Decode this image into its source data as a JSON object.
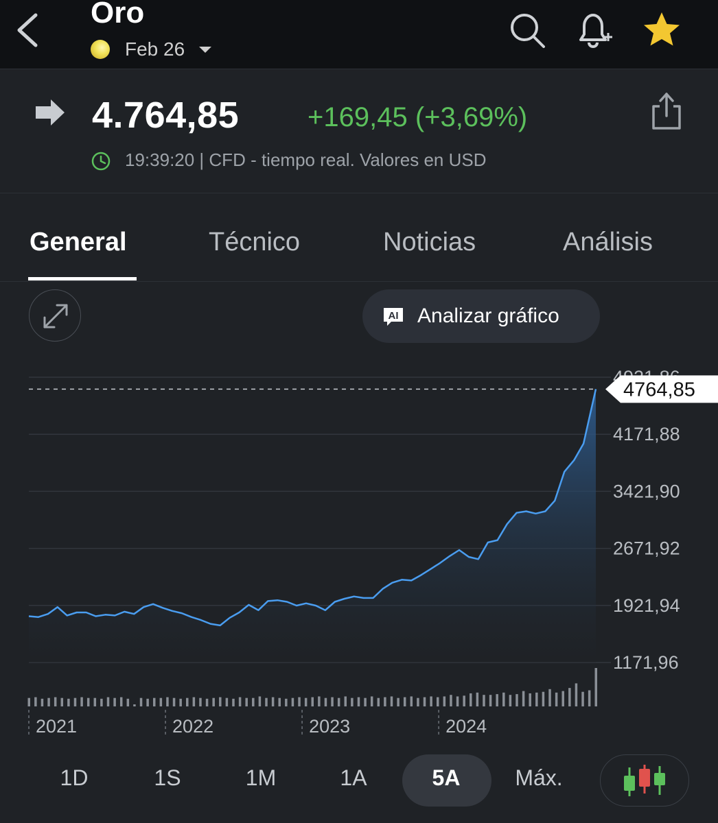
{
  "header": {
    "title": "Oro",
    "date": "Feb 26",
    "icons": [
      "back-chevron-icon",
      "search-icon",
      "bell-plus-icon",
      "star-icon"
    ],
    "star_color": "#f3c731"
  },
  "quote": {
    "price": "4.764,85",
    "change": "+169,45 (+3,69%)",
    "meta": "19:39:20 | CFD - tiempo real. Valores en USD",
    "change_color": "#5cc05c"
  },
  "tabs": [
    {
      "label": "General",
      "active": true
    },
    {
      "label": "Técnico"
    },
    {
      "label": "Noticias"
    },
    {
      "label": "Análisis"
    }
  ],
  "chart_controls": {
    "analyze_label": "Analizar gráfico",
    "ai_badge": "AI"
  },
  "ranges": [
    {
      "label": "1D"
    },
    {
      "label": "1S"
    },
    {
      "label": "1M"
    },
    {
      "label": "1A"
    },
    {
      "label": "5A",
      "active": true
    },
    {
      "label": "Máx."
    }
  ],
  "chart_data": {
    "type": "area",
    "y_ticks": [
      "4921,86",
      "4171,88",
      "3421,90",
      "2671,92",
      "1921,94",
      "1171,96"
    ],
    "y_tick_values": [
      4921.86,
      4171.88,
      3421.9,
      2671.92,
      1921.94,
      1171.96
    ],
    "ylim": [
      1171.96,
      4921.86
    ],
    "last_value_label": "4764,85",
    "last_value": 4764.85,
    "x_ticks": [
      "2021",
      "2022",
      "2023",
      "2024"
    ],
    "x_tick_values": [
      2021.0,
      2022.0,
      2023.0,
      2024.0
    ],
    "x_range": [
      2021.0,
      2025.15
    ],
    "series": [
      {
        "color": "#4a9df0",
        "x": [
          2021.0,
          2021.07,
          2021.14,
          2021.21,
          2021.28,
          2021.35,
          2021.42,
          2021.49,
          2021.56,
          2021.63,
          2021.7,
          2021.77,
          2021.84,
          2021.91,
          2021.98,
          2022.05,
          2022.12,
          2022.19,
          2022.26,
          2022.33,
          2022.4,
          2022.47,
          2022.54,
          2022.61,
          2022.68,
          2022.75,
          2022.82,
          2022.89,
          2022.96,
          2023.03,
          2023.1,
          2023.17,
          2023.24,
          2023.31,
          2023.38,
          2023.45,
          2023.52,
          2023.59,
          2023.66,
          2023.73,
          2023.8,
          2023.87,
          2023.94,
          2024.01,
          2024.08,
          2024.15,
          2024.22,
          2024.29,
          2024.36,
          2024.43,
          2024.5,
          2024.57,
          2024.64,
          2024.71,
          2024.78,
          2024.85,
          2024.92,
          2024.99,
          2025.06,
          2025.15
        ],
        "y": [
          1780,
          1770,
          1810,
          1900,
          1790,
          1830,
          1830,
          1780,
          1800,
          1790,
          1840,
          1810,
          1900,
          1940,
          1890,
          1850,
          1820,
          1770,
          1730,
          1680,
          1660,
          1760,
          1830,
          1930,
          1860,
          1980,
          1990,
          1970,
          1920,
          1950,
          1920,
          1860,
          1970,
          2010,
          2040,
          2020,
          2020,
          2140,
          2220,
          2260,
          2250,
          2320,
          2400,
          2480,
          2570,
          2650,
          2560,
          2530,
          2750,
          2780,
          2990,
          3140,
          3160,
          3130,
          3160,
          3300,
          3680,
          3830,
          4050,
          4764.85
        ]
      }
    ],
    "volume": [
      0.22,
      0.24,
      0.2,
      0.22,
      0.24,
      0.22,
      0.2,
      0.22,
      0.24,
      0.22,
      0.22,
      0.2,
      0.24,
      0.22,
      0.24,
      0.2,
      0.04,
      0.22,
      0.2,
      0.22,
      0.22,
      0.24,
      0.22,
      0.2,
      0.22,
      0.24,
      0.22,
      0.2,
      0.22,
      0.24,
      0.22,
      0.2,
      0.24,
      0.22,
      0.22,
      0.26,
      0.22,
      0.24,
      0.22,
      0.2,
      0.22,
      0.24,
      0.22,
      0.24,
      0.26,
      0.22,
      0.24,
      0.22,
      0.26,
      0.22,
      0.24,
      0.22,
      0.26,
      0.22,
      0.24,
      0.26,
      0.22,
      0.24,
      0.26,
      0.22,
      0.24,
      0.26,
      0.24,
      0.26,
      0.3,
      0.26,
      0.28,
      0.34,
      0.36,
      0.3,
      0.3,
      0.32,
      0.36,
      0.3,
      0.32,
      0.4,
      0.34,
      0.36,
      0.38,
      0.45,
      0.36,
      0.4,
      0.48,
      0.6,
      0.38,
      0.42,
      1.0
    ]
  }
}
